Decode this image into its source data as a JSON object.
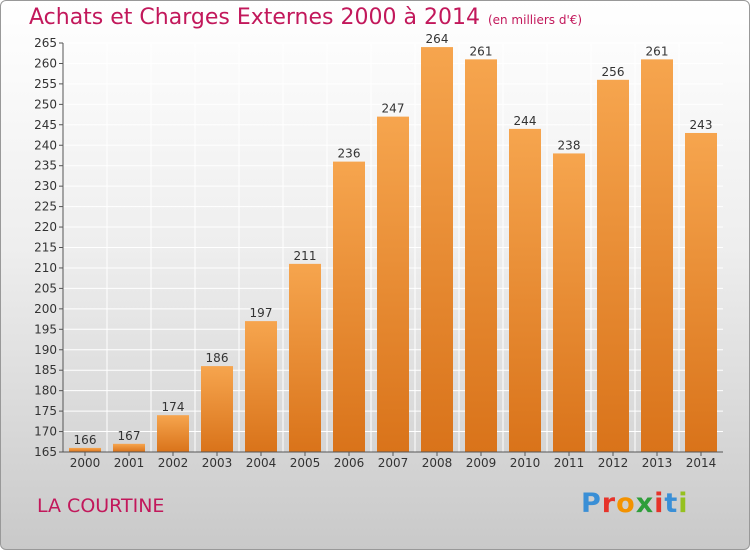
{
  "header": {
    "title": "Achats et Charges Externes 2000 à 2014",
    "subtitle": "(en milliers d'€)"
  },
  "footer": {
    "location": "LA COURTINE",
    "brand": "Proxiti",
    "brand_letters": [
      {
        "char": "P",
        "color": "#3a8fd6"
      },
      {
        "char": "r",
        "color": "#e6332a"
      },
      {
        "char": "o",
        "color": "#f39200"
      },
      {
        "char": "x",
        "color": "#2e9e3a"
      },
      {
        "char": "i",
        "color": "#e6332a"
      },
      {
        "char": "t",
        "color": "#3a8fd6"
      },
      {
        "char": "i",
        "color": "#95c11f"
      }
    ]
  },
  "chart_data": {
    "type": "bar",
    "title": "Achats et Charges Externes 2000 à 2014",
    "subtitle": "(en milliers d'€)",
    "categories": [
      "2000",
      "2001",
      "2002",
      "2003",
      "2004",
      "2005",
      "2006",
      "2007",
      "2008",
      "2009",
      "2010",
      "2011",
      "2012",
      "2013",
      "2014"
    ],
    "values": [
      166,
      167,
      174,
      186,
      197,
      211,
      236,
      247,
      264,
      261,
      244,
      238,
      256,
      261,
      243
    ],
    "ylim": [
      165,
      265
    ],
    "yticks": [
      165,
      170,
      175,
      180,
      185,
      190,
      195,
      200,
      205,
      210,
      215,
      220,
      225,
      230,
      235,
      240,
      245,
      250,
      255,
      260,
      265
    ],
    "grid": true,
    "colors": {
      "bar_light": "#f6a54e",
      "bar_dark": "#d9731a",
      "grid": "#ffffff",
      "axis": "#555555"
    }
  }
}
